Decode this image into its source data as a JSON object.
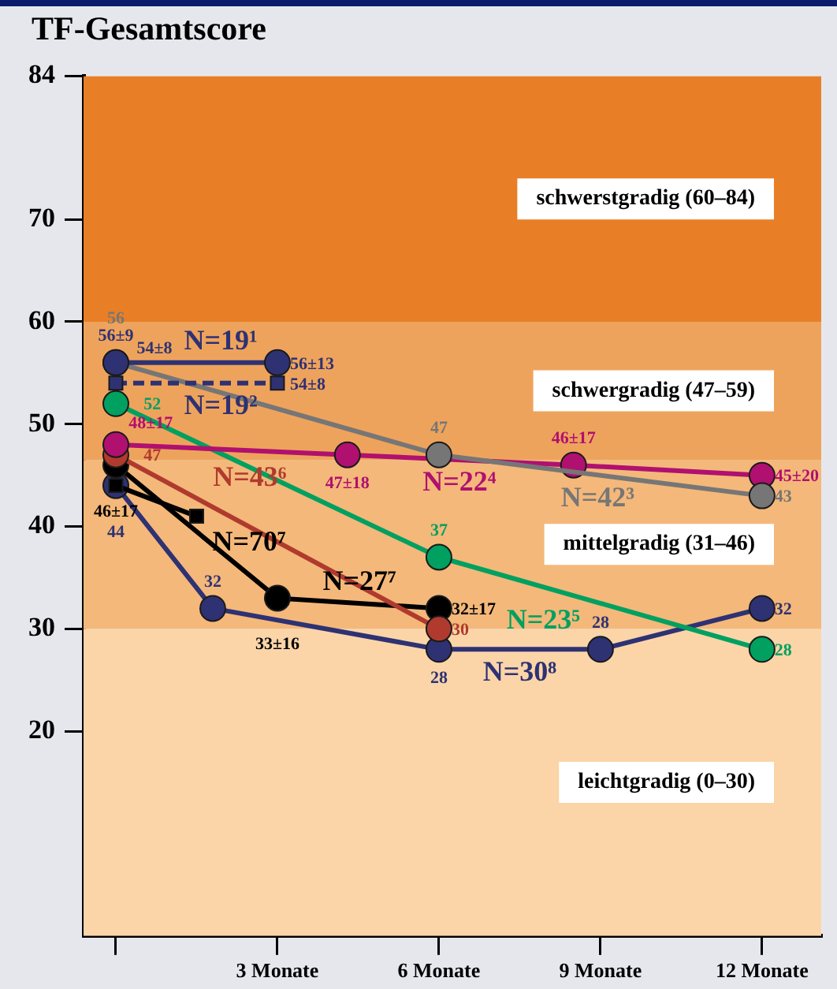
{
  "chart_data": {
    "type": "line",
    "title": "TF-Gesamtscore",
    "xlim": [
      -0.6,
      13.1
    ],
    "xticks": [
      {
        "value": 0,
        "label": null
      },
      {
        "value": 3,
        "label": "3 Monate"
      },
      {
        "value": 6,
        "label": "6 Monate"
      },
      {
        "value": 9,
        "label": "9 Monate"
      },
      {
        "value": 12,
        "label": "12 Monate"
      }
    ],
    "ylim": [
      0,
      84
    ],
    "yticks": [
      20,
      30,
      40,
      50,
      60,
      70,
      84
    ],
    "grid": false,
    "legend": false,
    "marker": "circle",
    "bands": [
      {
        "axis": "y",
        "from": 0,
        "to": 30,
        "label": "leichtgradig (0–30)",
        "color": "#fbd5a8"
      },
      {
        "axis": "y",
        "from": 30,
        "to": 46.5,
        "label": "mittelgradig (31–46)",
        "color": "#f4b87a"
      },
      {
        "axis": "y",
        "from": 46.5,
        "to": 60,
        "label": "schwergradig (47–59)",
        "color": "#eea35c"
      },
      {
        "axis": "y",
        "from": 60,
        "to": 84,
        "label": "schwerstgradig (60–84)",
        "color": "#e87f27"
      }
    ],
    "series": [
      {
        "name": "N=19¹",
        "color": "#2e3273",
        "x": [
          0,
          3
        ],
        "values": [
          56,
          56
        ],
        "value_labels": [
          "56±9",
          "56±13"
        ]
      },
      {
        "name": "N=19²",
        "color": "#2e3273",
        "x": [
          0,
          3
        ],
        "values": [
          54,
          54
        ],
        "value_labels": [
          "54±8",
          "54±8"
        ],
        "marker": "square",
        "line_style": "dashed"
      },
      {
        "name": "N=42³",
        "color": "#767676",
        "x": [
          0,
          6,
          12
        ],
        "values": [
          56,
          47,
          43
        ],
        "value_labels": [
          "56",
          "47",
          "43"
        ]
      },
      {
        "name": "N=22⁴",
        "color": "#b0106f",
        "x": [
          0,
          4.3,
          8.5,
          12
        ],
        "values": [
          48,
          47,
          46,
          45
        ],
        "value_labels": [
          "48±17",
          "47±18",
          "46±17",
          "45±20"
        ]
      },
      {
        "name": "N=23⁵",
        "color": "#00a060",
        "x": [
          0,
          6,
          12
        ],
        "values": [
          52,
          37,
          28
        ],
        "value_labels": [
          "52",
          "37",
          "28"
        ]
      },
      {
        "name": "N=43⁶",
        "color": "#b03a2e",
        "x": [
          0,
          6
        ],
        "values": [
          47,
          30
        ],
        "value_labels": [
          "47",
          "30"
        ]
      },
      {
        "name": "N=70⁷",
        "color": "#000000",
        "x": [
          0,
          1.5
        ],
        "values": [
          44,
          41
        ],
        "marker": "square"
      },
      {
        "name": "N=27⁷",
        "color": "#000000",
        "x": [
          0,
          3,
          6
        ],
        "values": [
          46,
          33,
          32
        ],
        "value_labels": [
          "46±17",
          "33±16",
          "32±17"
        ]
      },
      {
        "name": "N=30⁸",
        "color": "#2e3273",
        "x": [
          0,
          1.8,
          6,
          9,
          12
        ],
        "values": [
          44,
          32,
          28,
          28,
          32
        ],
        "value_labels": [
          "44",
          "32",
          "28",
          "28",
          "32"
        ]
      }
    ]
  }
}
